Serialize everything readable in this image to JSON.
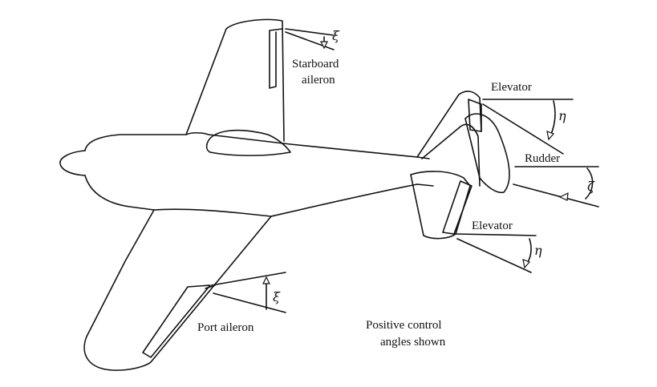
{
  "labels": {
    "starboard_aileron_line1": "Starboard",
    "starboard_aileron_line2": "aileron",
    "port_aileron": "Port aileron",
    "elevator_top": "Elevator",
    "elevator_bottom": "Elevator",
    "rudder": "Rudder",
    "note_line1": "Positive control",
    "note_line2": "angles shown"
  },
  "symbols": {
    "xi_starboard": "ξ",
    "xi_port": "ξ",
    "eta_top": "η",
    "eta_bottom": "η",
    "zeta": "ζ"
  }
}
